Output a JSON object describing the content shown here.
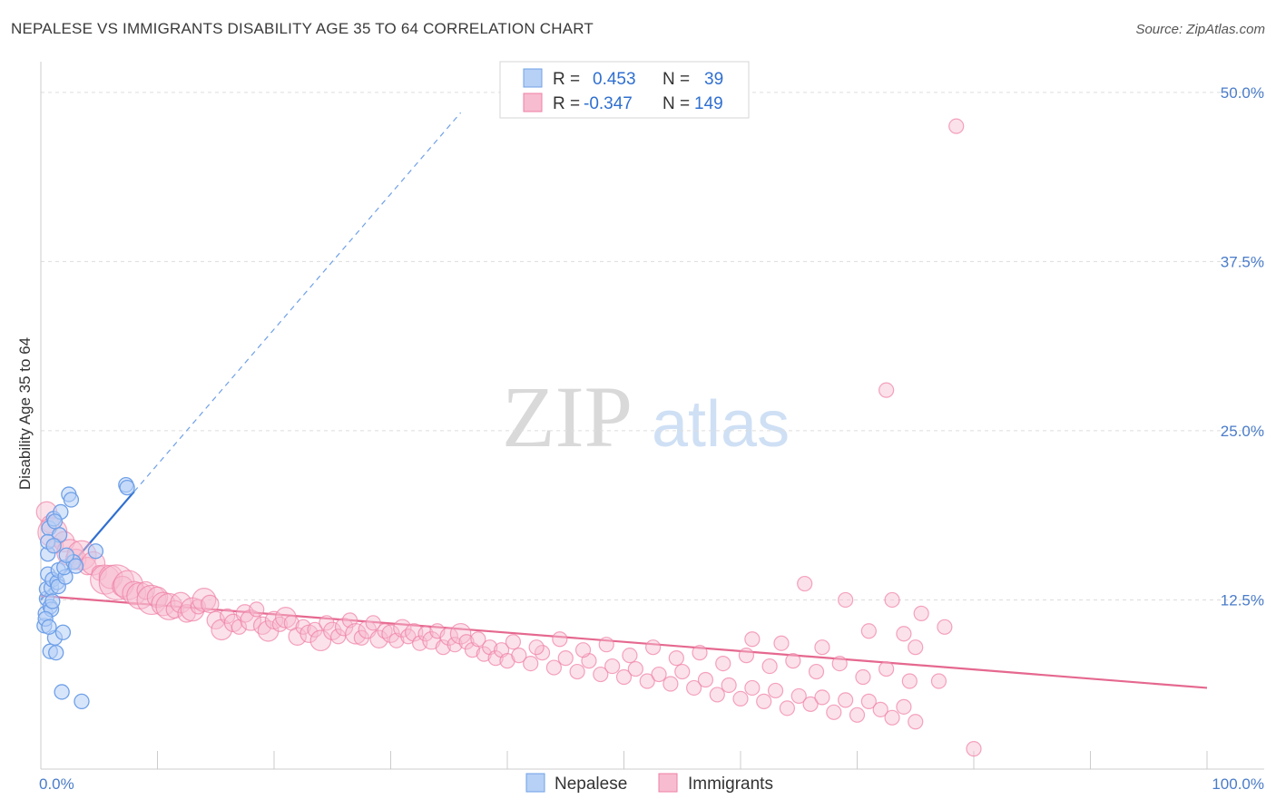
{
  "title": "NEPALESE VS IMMIGRANTS DISABILITY AGE 35 TO 64 CORRELATION CHART",
  "source": "Source: ZipAtlas.com",
  "watermark": {
    "zip": "ZIP",
    "atlas": "atlas"
  },
  "colors": {
    "nepalese": "#6fa0e8",
    "nepalese_fill": "#b7d0f5",
    "nepalese_line": "#2f6fd0",
    "immigrants": "#ef7fa5",
    "immigrants_fill": "#f7bcd0",
    "immigrants_line": "#e5688f",
    "grid": "#dddddd",
    "tick_text": "#4a7cc9"
  },
  "legend": {
    "r_label": "R =",
    "n_label": "N =",
    "nepalese": {
      "r": "0.453",
      "n": "39"
    },
    "immigrants": {
      "r": "-0.347",
      "n": "149"
    }
  },
  "chart_data": {
    "type": "scatter",
    "xlabel": "",
    "ylabel": "Disability Age 35 to 64",
    "xlim": [
      0,
      100
    ],
    "ylim": [
      0,
      52
    ],
    "x_ticks": [
      {
        "value": 0,
        "label": "0.0%"
      },
      {
        "value": 100,
        "label": "100.0%"
      }
    ],
    "y_ticks": [
      {
        "value": 12.5,
        "label": "12.5%"
      },
      {
        "value": 25.0,
        "label": "25.0%"
      },
      {
        "value": 37.5,
        "label": "37.5%"
      },
      {
        "value": 50.0,
        "label": "50.0%"
      }
    ],
    "series": [
      {
        "name": "Nepalese",
        "trend": {
          "x0": 0,
          "y0": 12.5,
          "x1": 8,
          "y1": 20.5,
          "extend_to_x": 36
        },
        "points": [
          [
            0.3,
            10.6
          ],
          [
            0.4,
            11.5
          ],
          [
            0.5,
            12.6
          ],
          [
            0.5,
            13.3
          ],
          [
            0.6,
            14.4
          ],
          [
            0.6,
            15.9
          ],
          [
            0.7,
            17.8
          ],
          [
            0.8,
            12.0
          ],
          [
            0.8,
            8.7
          ],
          [
            0.9,
            11.8
          ],
          [
            0.9,
            13.4
          ],
          [
            1.0,
            14.0
          ],
          [
            1.1,
            18.5
          ],
          [
            1.2,
            9.7
          ],
          [
            1.3,
            8.6
          ],
          [
            1.4,
            13.8
          ],
          [
            1.5,
            14.7
          ],
          [
            1.6,
            17.3
          ],
          [
            1.7,
            19.0
          ],
          [
            1.2,
            18.3
          ],
          [
            1.5,
            13.5
          ],
          [
            1.9,
            10.1
          ],
          [
            2.1,
            14.2
          ],
          [
            2.0,
            14.9
          ],
          [
            2.4,
            20.3
          ],
          [
            2.6,
            19.9
          ],
          [
            2.8,
            15.3
          ],
          [
            1.8,
            5.7
          ],
          [
            3.5,
            5.0
          ],
          [
            4.7,
            16.1
          ],
          [
            7.3,
            21.0
          ],
          [
            7.4,
            20.8
          ],
          [
            0.4,
            11.1
          ],
          [
            0.7,
            10.5
          ],
          [
            1.0,
            12.4
          ],
          [
            2.2,
            15.8
          ],
          [
            0.6,
            16.8
          ],
          [
            1.1,
            16.5
          ],
          [
            3.0,
            15.0
          ]
        ]
      },
      {
        "name": "Immigrants",
        "trend": {
          "x0": 0,
          "y0": 12.8,
          "x1": 100,
          "y1": 6.0
        },
        "points": [
          [
            0.5,
            19.0,
            14
          ],
          [
            0.8,
            18.1,
            12
          ],
          [
            1.0,
            17.5,
            20
          ],
          [
            1.3,
            16.5,
            10
          ],
          [
            2.0,
            16.8,
            14
          ],
          [
            2.5,
            16.0,
            18
          ],
          [
            3.0,
            15.5,
            14
          ],
          [
            3.5,
            15.8,
            20
          ],
          [
            4.0,
            15.0,
            12
          ],
          [
            4.5,
            15.2,
            16
          ],
          [
            5.0,
            14.5,
            10
          ],
          [
            5.5,
            14.0,
            20
          ],
          [
            6.0,
            14.2,
            16
          ],
          [
            6.5,
            13.8,
            24
          ],
          [
            7.0,
            13.5,
            14
          ],
          [
            7.5,
            13.6,
            20
          ],
          [
            8.0,
            13.0,
            16
          ],
          [
            8.5,
            12.8,
            18
          ],
          [
            9.0,
            13.2,
            12
          ],
          [
            9.5,
            12.5,
            20
          ],
          [
            10.0,
            12.7,
            14
          ],
          [
            10.5,
            12.2,
            16
          ],
          [
            11.0,
            12.0,
            18
          ],
          [
            11.5,
            11.8,
            12
          ],
          [
            12.0,
            12.3,
            14
          ],
          [
            12.5,
            11.5,
            12
          ],
          [
            13.0,
            11.8,
            16
          ],
          [
            13.5,
            12.0,
            10
          ],
          [
            14.0,
            12.5,
            16
          ],
          [
            14.5,
            12.2,
            12
          ],
          [
            15.0,
            11.0,
            12
          ],
          [
            15.5,
            10.3,
            14
          ],
          [
            16.0,
            11.3,
            10
          ],
          [
            16.5,
            10.8,
            12
          ],
          [
            17.0,
            10.5,
            10
          ],
          [
            17.5,
            11.5,
            12
          ],
          [
            18.0,
            11.0,
            14
          ],
          [
            18.5,
            11.8,
            10
          ],
          [
            19.0,
            10.6,
            12
          ],
          [
            19.5,
            10.2,
            14
          ],
          [
            20.0,
            11.0,
            12
          ],
          [
            20.5,
            10.7,
            10
          ],
          [
            21.0,
            11.2,
            14
          ],
          [
            21.5,
            10.8,
            10
          ],
          [
            22.0,
            9.8,
            12
          ],
          [
            22.5,
            10.5,
            10
          ],
          [
            23.0,
            10.0,
            12
          ],
          [
            23.5,
            10.3,
            10
          ],
          [
            24.0,
            9.5,
            14
          ],
          [
            24.5,
            10.8,
            10
          ],
          [
            25.0,
            10.2,
            12
          ],
          [
            25.5,
            9.8,
            10
          ],
          [
            26.0,
            10.5,
            12
          ],
          [
            26.5,
            11.0,
            10
          ],
          [
            27.0,
            10.0,
            14
          ],
          [
            27.5,
            9.7,
            10
          ],
          [
            28.0,
            10.3,
            12
          ],
          [
            28.5,
            10.8,
            10
          ],
          [
            29.0,
            9.6,
            12
          ],
          [
            29.5,
            10.2,
            10
          ],
          [
            30.0,
            10.0,
            12
          ],
          [
            30.5,
            9.5,
            10
          ],
          [
            31.0,
            10.4,
            12
          ],
          [
            31.5,
            9.8,
            10
          ],
          [
            32.0,
            10.1,
            12
          ],
          [
            32.5,
            9.3,
            10
          ],
          [
            33.0,
            10.0,
            10
          ],
          [
            33.5,
            9.5,
            12
          ],
          [
            34.0,
            10.2,
            10
          ],
          [
            34.5,
            9.0,
            10
          ],
          [
            35.0,
            9.8,
            12
          ],
          [
            35.5,
            9.2,
            10
          ],
          [
            36.0,
            10.0,
            14
          ],
          [
            36.5,
            9.4,
            10
          ],
          [
            37.0,
            8.8,
            10
          ],
          [
            37.5,
            9.6,
            10
          ],
          [
            38.0,
            8.5,
            10
          ],
          [
            38.5,
            9.0,
            10
          ],
          [
            39.0,
            8.2,
            10
          ],
          [
            39.5,
            8.8,
            10
          ],
          [
            40.0,
            8.0,
            10
          ],
          [
            41.0,
            8.4,
            10
          ],
          [
            42.0,
            7.8,
            10
          ],
          [
            43.0,
            8.6,
            10
          ],
          [
            44.0,
            7.5,
            10
          ],
          [
            45.0,
            8.2,
            10
          ],
          [
            46.0,
            7.2,
            10
          ],
          [
            47.0,
            8.0,
            10
          ],
          [
            48.0,
            7.0,
            10
          ],
          [
            49.0,
            7.6,
            10
          ],
          [
            50.0,
            6.8,
            10
          ],
          [
            51.0,
            7.4,
            10
          ],
          [
            52.0,
            6.5,
            10
          ],
          [
            53.0,
            7.0,
            10
          ],
          [
            54.0,
            6.3,
            10
          ],
          [
            55.0,
            7.2,
            10
          ],
          [
            56.0,
            6.0,
            10
          ],
          [
            57.0,
            6.6,
            10
          ],
          [
            58.0,
            5.5,
            10
          ],
          [
            59.0,
            6.2,
            10
          ],
          [
            60.0,
            5.2,
            10
          ],
          [
            61.0,
            6.0,
            10
          ],
          [
            62.0,
            5.0,
            10
          ],
          [
            63.0,
            5.8,
            10
          ],
          [
            64.0,
            4.5,
            10
          ],
          [
            65.0,
            5.4,
            10
          ],
          [
            66.0,
            4.8,
            10
          ],
          [
            67.0,
            5.3,
            10
          ],
          [
            68.0,
            4.2,
            10
          ],
          [
            69.0,
            5.1,
            10
          ],
          [
            70.0,
            4.0,
            10
          ],
          [
            71.0,
            5.0,
            10
          ],
          [
            72.0,
            4.4,
            10
          ],
          [
            73.0,
            3.8,
            10
          ],
          [
            74.0,
            4.6,
            10
          ],
          [
            75.0,
            3.5,
            10
          ],
          [
            40.5,
            9.4,
            10
          ],
          [
            42.5,
            9.0,
            10
          ],
          [
            44.5,
            9.6,
            10
          ],
          [
            46.5,
            8.8,
            10
          ],
          [
            48.5,
            9.2,
            10
          ],
          [
            50.5,
            8.4,
            10
          ],
          [
            52.5,
            9.0,
            10
          ],
          [
            54.5,
            8.2,
            10
          ],
          [
            56.5,
            8.6,
            10
          ],
          [
            58.5,
            7.8,
            10
          ],
          [
            60.5,
            8.4,
            10
          ],
          [
            62.5,
            7.6,
            10
          ],
          [
            64.5,
            8.0,
            10
          ],
          [
            66.5,
            7.2,
            10
          ],
          [
            68.5,
            7.8,
            10
          ],
          [
            70.5,
            6.8,
            10
          ],
          [
            72.5,
            7.4,
            10
          ],
          [
            74.5,
            6.5,
            10
          ],
          [
            65.5,
            13.7,
            10
          ],
          [
            69.0,
            12.5,
            10
          ],
          [
            72.5,
            28.0,
            10
          ],
          [
            78.5,
            47.5,
            10
          ],
          [
            80.0,
            1.5,
            10
          ],
          [
            71.0,
            10.2,
            10
          ],
          [
            73.0,
            12.5,
            10
          ],
          [
            75.5,
            11.5,
            10
          ],
          [
            77.5,
            10.5,
            10
          ],
          [
            75.0,
            9.0,
            10
          ],
          [
            77.0,
            6.5,
            10
          ],
          [
            74.0,
            10.0,
            10
          ],
          [
            63.5,
            9.3,
            10
          ],
          [
            67.0,
            9.0,
            10
          ],
          [
            61.0,
            9.6,
            10
          ]
        ]
      }
    ]
  }
}
